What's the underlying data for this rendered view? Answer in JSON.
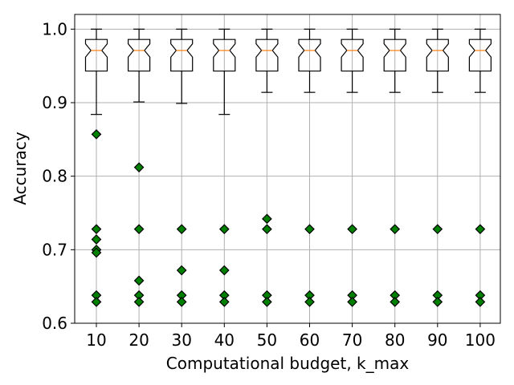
{
  "chart_data": {
    "type": "boxplot",
    "notched": true,
    "grid": true,
    "xlabel": "Computational budget, k_max",
    "ylabel": "Accuracy",
    "ylim": [
      0.6,
      1.02
    ],
    "yticks": [
      "0.6",
      "0.7",
      "0.8",
      "0.9",
      "1.0"
    ],
    "categories": [
      "10",
      "20",
      "30",
      "40",
      "50",
      "60",
      "70",
      "80",
      "90",
      "100"
    ],
    "box_color": "#000000",
    "median_color": "#ff7f0e",
    "flier_color": "#008000",
    "boxes": [
      {
        "whislo": 0.884,
        "q1": 0.943,
        "med": 0.971,
        "q3": 0.986,
        "whishi": 1.0,
        "notch_lo": 0.962,
        "notch_hi": 0.98,
        "fliers": [
          0.857,
          0.728,
          0.714,
          0.7,
          0.696,
          0.638,
          0.629
        ]
      },
      {
        "whislo": 0.901,
        "q1": 0.943,
        "med": 0.971,
        "q3": 0.986,
        "whishi": 1.0,
        "notch_lo": 0.962,
        "notch_hi": 0.98,
        "fliers": [
          0.812,
          0.728,
          0.658,
          0.638,
          0.629
        ]
      },
      {
        "whislo": 0.899,
        "q1": 0.943,
        "med": 0.971,
        "q3": 0.986,
        "whishi": 1.0,
        "notch_lo": 0.962,
        "notch_hi": 0.98,
        "fliers": [
          0.728,
          0.672,
          0.638,
          0.629
        ]
      },
      {
        "whislo": 0.884,
        "q1": 0.943,
        "med": 0.971,
        "q3": 0.986,
        "whishi": 1.0,
        "notch_lo": 0.962,
        "notch_hi": 0.98,
        "fliers": [
          0.728,
          0.672,
          0.638,
          0.629
        ]
      },
      {
        "whislo": 0.914,
        "q1": 0.943,
        "med": 0.971,
        "q3": 0.986,
        "whishi": 1.0,
        "notch_lo": 0.962,
        "notch_hi": 0.98,
        "fliers": [
          0.742,
          0.728,
          0.638,
          0.629
        ]
      },
      {
        "whislo": 0.914,
        "q1": 0.943,
        "med": 0.971,
        "q3": 0.986,
        "whishi": 1.0,
        "notch_lo": 0.962,
        "notch_hi": 0.98,
        "fliers": [
          0.728,
          0.638,
          0.629
        ]
      },
      {
        "whislo": 0.914,
        "q1": 0.943,
        "med": 0.971,
        "q3": 0.986,
        "whishi": 1.0,
        "notch_lo": 0.962,
        "notch_hi": 0.98,
        "fliers": [
          0.728,
          0.638,
          0.629
        ]
      },
      {
        "whislo": 0.914,
        "q1": 0.943,
        "med": 0.971,
        "q3": 0.986,
        "whishi": 1.0,
        "notch_lo": 0.962,
        "notch_hi": 0.98,
        "fliers": [
          0.728,
          0.638,
          0.629
        ]
      },
      {
        "whislo": 0.914,
        "q1": 0.943,
        "med": 0.971,
        "q3": 0.986,
        "whishi": 1.0,
        "notch_lo": 0.962,
        "notch_hi": 0.98,
        "fliers": [
          0.728,
          0.638,
          0.629
        ]
      },
      {
        "whislo": 0.914,
        "q1": 0.943,
        "med": 0.971,
        "q3": 0.986,
        "whishi": 1.0,
        "notch_lo": 0.962,
        "notch_hi": 0.98,
        "fliers": [
          0.728,
          0.638,
          0.629
        ]
      }
    ]
  }
}
